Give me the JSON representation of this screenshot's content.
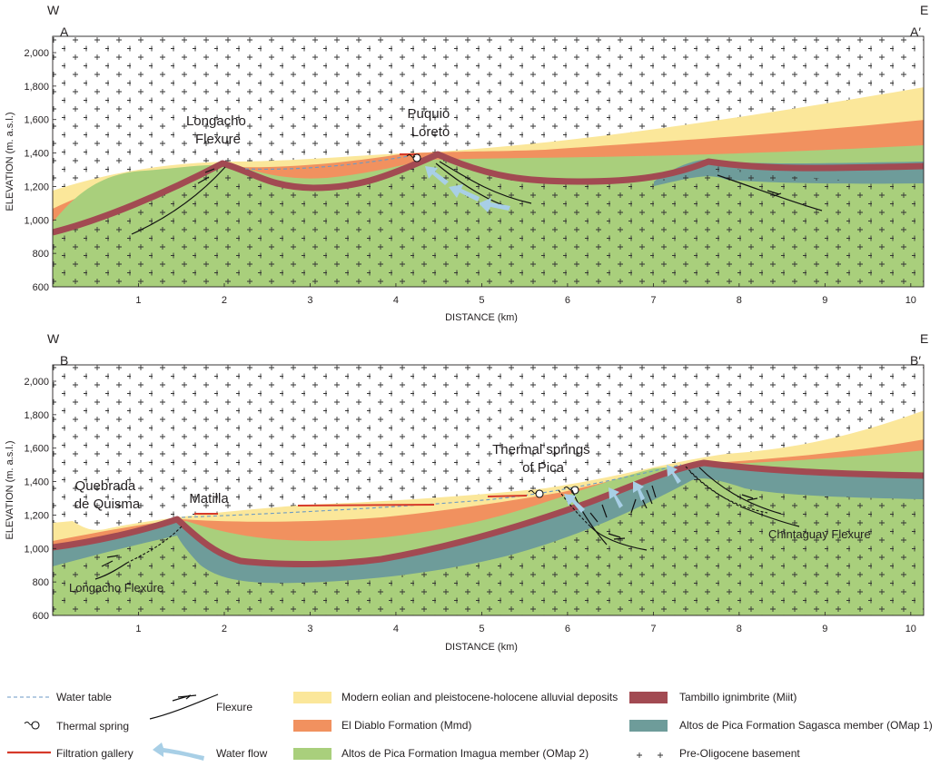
{
  "colors": {
    "eolian": "#fbe79a",
    "diablo": "#f1915f",
    "imagua": "#a9cf7c",
    "tambillo": "#a24a52",
    "sagasca": "#6e9c9a",
    "water_table": "#6b9ac4",
    "water_flow": "#a8cfe6",
    "filtration": "#d63a2a",
    "basement_mark": "#333333"
  },
  "axis": {
    "y_ticks": [
      "2,000",
      "1,800",
      "1,600",
      "1,400",
      "1,200",
      "1,000",
      "800",
      "600"
    ],
    "x_ticks": [
      "1",
      "2",
      "3",
      "4",
      "5",
      "6",
      "7",
      "8",
      "9",
      "10"
    ],
    "y_label": "ELEVATION (m. a.s.l.)",
    "x_label": "DISTANCE (km)"
  },
  "sections": [
    {
      "west": "W",
      "east": "E",
      "start": "A",
      "end": "A′",
      "labels": {
        "longacho": "Longacho\nFlexure",
        "puquio": "Puquio\nLoreto"
      }
    },
    {
      "west": "W",
      "east": "E",
      "start": "B",
      "end": "B′",
      "labels": {
        "quebrada": "Quebrada\nde Quisma",
        "matilla": "Matilla",
        "thermal": "Thermal springs\nof Pica",
        "longacho_flex": "Longacho Flexure",
        "chintaguay": "Chintaguay Flexure"
      }
    }
  ],
  "legend": {
    "water_table": "Water table",
    "thermal_spring": "Thermal spring",
    "filtration_gallery": "Filtration gallery",
    "flexure": "Flexure",
    "water_flow": "Water flow",
    "eolian": "Modern eolian and pleistocene-holocene alluvial deposits",
    "diablo": "El Diablo Formation (Mmd)",
    "imagua": "Altos de Pica Formation Imagua member (OMap 2)",
    "tambillo": "Tambillo ignimbrite (Miit)",
    "sagasca": "Altos de Pica Formation Sagasca member (OMap 1)",
    "basement": "Pre-Oligocene basement"
  }
}
